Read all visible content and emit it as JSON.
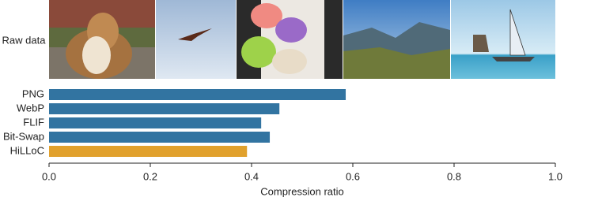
{
  "row_label": "Raw data",
  "chart_data": {
    "type": "barh",
    "categories": [
      "PNG",
      "WebP",
      "FLIF",
      "Bit-Swap",
      "HiLLoC"
    ],
    "values": [
      0.586,
      0.455,
      0.419,
      0.436,
      0.391
    ],
    "colors": [
      "#3274a1",
      "#3274a1",
      "#3274a1",
      "#3274a1",
      "#e1a12d"
    ],
    "xlabel": "Compression ratio",
    "xlim": [
      0,
      1
    ],
    "xticks": [
      {
        "value": 0,
        "label": "0.0"
      },
      0.2,
      0.4,
      0.6,
      0.8,
      {
        "value": 1,
        "label": "1.0"
      }
    ],
    "grid": false
  }
}
